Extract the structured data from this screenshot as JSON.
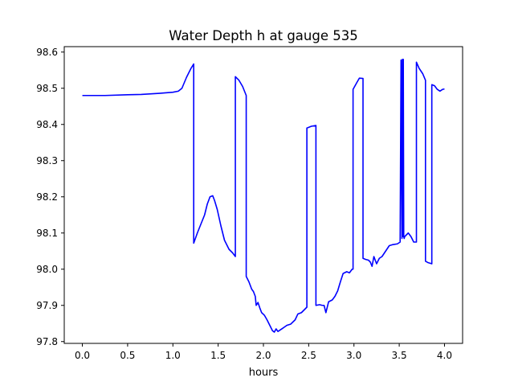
{
  "chart_data": {
    "type": "line",
    "title": "Water Depth h at gauge 535",
    "xlabel": "hours",
    "ylabel": "",
    "xlim": [
      -0.2,
      4.2
    ],
    "ylim": [
      97.795,
      98.615
    ],
    "xticks": [
      0.0,
      0.5,
      1.0,
      1.5,
      2.0,
      2.5,
      3.0,
      3.5,
      4.0
    ],
    "xtick_labels": [
      "0.0",
      "0.5",
      "1.0",
      "1.5",
      "2.0",
      "2.5",
      "3.0",
      "3.5",
      "4.0"
    ],
    "yticks": [
      97.8,
      97.9,
      98.0,
      98.1,
      98.2,
      98.3,
      98.4,
      98.5,
      98.6
    ],
    "ytick_labels": [
      "97.8",
      "97.9",
      "98.0",
      "98.1",
      "98.2",
      "98.3",
      "98.4",
      "98.5",
      "98.6"
    ],
    "grid": false,
    "series": [
      {
        "color": "#0000ff",
        "x": [
          0.0,
          0.25,
          0.5,
          0.65,
          0.85,
          1.0,
          1.06,
          1.1,
          1.15,
          1.2,
          1.23,
          1.23,
          1.27,
          1.31,
          1.35,
          1.38,
          1.41,
          1.44,
          1.46,
          1.49,
          1.53,
          1.57,
          1.62,
          1.66,
          1.69,
          1.69,
          1.73,
          1.77,
          1.81,
          1.81,
          1.84,
          1.87,
          1.89,
          1.91,
          1.92,
          1.94,
          1.96,
          1.98,
          2.01,
          2.04,
          2.07,
          2.1,
          2.12,
          2.14,
          2.16,
          2.19,
          2.22,
          2.26,
          2.3,
          2.35,
          2.38,
          2.42,
          2.46,
          2.48,
          2.48,
          2.53,
          2.58,
          2.58,
          2.62,
          2.65,
          2.67,
          2.69,
          2.72,
          2.76,
          2.79,
          2.82,
          2.85,
          2.88,
          2.92,
          2.95,
          2.98,
          2.99,
          2.99,
          3.03,
          3.06,
          3.1,
          3.1,
          3.13,
          3.16,
          3.18,
          3.2,
          3.22,
          3.25,
          3.28,
          3.31,
          3.35,
          3.39,
          3.43,
          3.48,
          3.51,
          3.51,
          3.52,
          3.53,
          3.535,
          3.54,
          3.545,
          3.55,
          3.555,
          3.56,
          3.6,
          3.63,
          3.66,
          3.69,
          3.69,
          3.72,
          3.76,
          3.79,
          3.79,
          3.82,
          3.86,
          3.86,
          3.89,
          3.92,
          3.95,
          3.98,
          4.0
        ],
        "y": [
          98.48,
          98.48,
          98.482,
          98.483,
          98.486,
          98.489,
          98.492,
          98.5,
          98.53,
          98.555,
          98.567,
          98.072,
          98.1,
          98.125,
          98.15,
          98.18,
          98.2,
          98.203,
          98.19,
          98.165,
          98.12,
          98.08,
          98.055,
          98.045,
          98.035,
          98.532,
          98.522,
          98.505,
          98.48,
          97.98,
          97.965,
          97.945,
          97.938,
          97.925,
          97.9,
          97.908,
          97.893,
          97.88,
          97.873,
          97.86,
          97.845,
          97.83,
          97.826,
          97.835,
          97.828,
          97.833,
          97.838,
          97.845,
          97.848,
          97.86,
          97.876,
          97.88,
          97.89,
          97.895,
          98.39,
          98.395,
          98.397,
          97.9,
          97.902,
          97.9,
          97.9,
          97.88,
          97.91,
          97.915,
          97.925,
          97.94,
          97.965,
          97.988,
          97.993,
          97.99,
          98.0,
          98.0,
          98.497,
          98.515,
          98.528,
          98.527,
          98.03,
          98.027,
          98.025,
          98.02,
          98.008,
          98.035,
          98.015,
          98.03,
          98.035,
          98.05,
          98.065,
          98.068,
          98.07,
          98.075,
          98.08,
          98.578,
          98.085,
          98.58,
          98.09,
          98.58,
          98.09,
          98.085,
          98.09,
          98.1,
          98.09,
          98.075,
          98.075,
          98.572,
          98.555,
          98.54,
          98.522,
          98.022,
          98.018,
          98.015,
          98.51,
          98.507,
          98.497,
          98.492,
          98.497,
          98.498
        ]
      }
    ]
  }
}
